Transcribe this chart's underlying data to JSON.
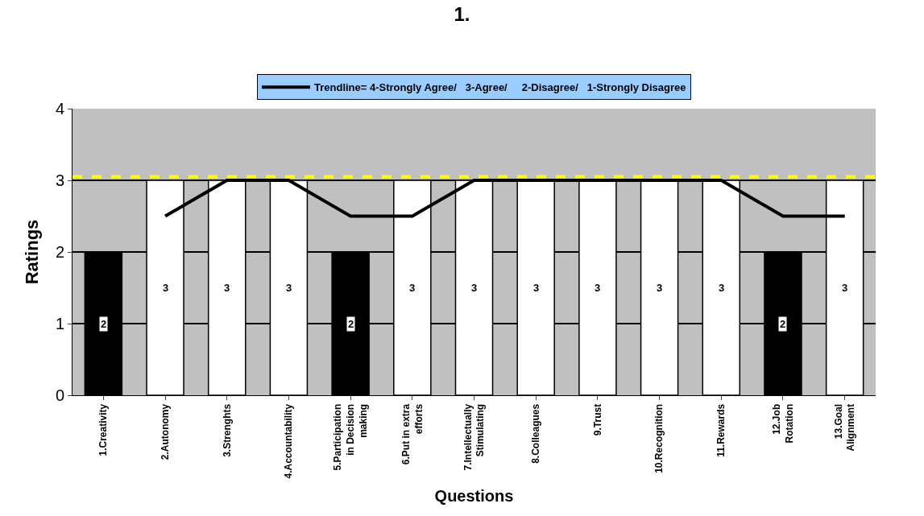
{
  "chart_data": {
    "type": "bar",
    "title": "1.",
    "xlabel": "Questions",
    "ylabel": "Ratings",
    "categories": [
      "1.Creativity",
      "2.Autonomy",
      "3.Strenghts",
      "4.Accountability",
      "5.Participation in Decision making",
      "6.Put in extra efforts",
      "7.Intellectually Stimulating",
      "8.Colleagues",
      "9.Trust",
      "10.Recognition",
      "11.Rewards",
      "12.Job Rotation",
      "13.Goal Alignment"
    ],
    "series": [
      {
        "colors": [
          "#000000",
          "#ffffff",
          "#ffffff",
          "#ffffff",
          "#000000",
          "#ffffff",
          "#ffffff",
          "#ffffff",
          "#ffffff",
          "#ffffff",
          "#ffffff",
          "#000000",
          "#ffffff"
        ],
        "values": [
          2,
          3,
          3,
          3,
          2,
          3,
          3,
          3,
          3,
          3,
          3,
          2,
          3
        ],
        "value_labels": [
          "2",
          "3",
          "3",
          "3",
          "2",
          "3",
          "3",
          "3",
          "3",
          "3",
          "3",
          "2",
          "3"
        ]
      },
      {
        "type": "line",
        "name": "Trendline= 4-Strongly Agree/   3-Agree/     2-Disagree/   1-Strongly Disagree",
        "color": "#000000",
        "values": [
          null,
          2.5,
          3,
          3,
          2.5,
          2.5,
          3,
          3,
          3,
          3,
          3,
          2.5,
          2.5
        ]
      }
    ],
    "ylim": [
      0,
      4
    ],
    "yticks": [
      0,
      1,
      2,
      3,
      4
    ],
    "grid": "y",
    "legend": "top",
    "ref_lines": [
      {
        "axis": "y",
        "value": 3.05,
        "color": "#ffff00",
        "line_style": "dashed"
      }
    ]
  }
}
